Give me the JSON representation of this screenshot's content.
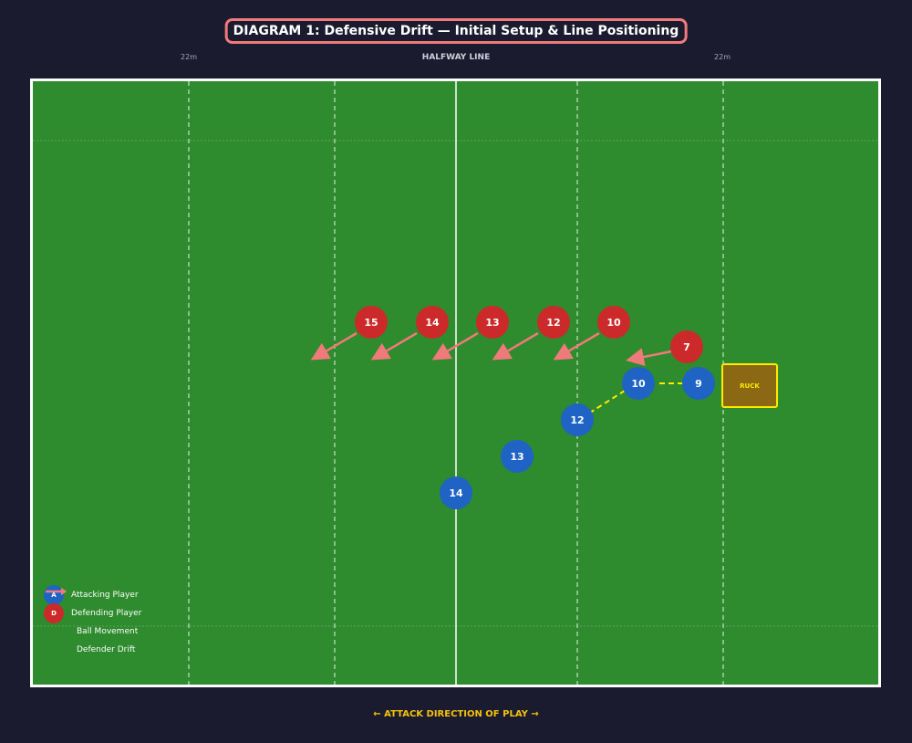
{
  "title": "DIAGRAM 1: Defensive Drift — Initial Setup & Line Positioning",
  "top_labels": {
    "left_22": "22m",
    "halfway": "HALFWAY LINE",
    "right_22": "22m"
  },
  "ruck_label": "RUCK",
  "attackers": [
    {
      "number": "9"
    },
    {
      "number": "10"
    },
    {
      "number": "12"
    },
    {
      "number": "13"
    },
    {
      "number": "14"
    }
  ],
  "defenders": [
    {
      "number": "15"
    },
    {
      "number": "14"
    },
    {
      "number": "13"
    },
    {
      "number": "12"
    },
    {
      "number": "10"
    },
    {
      "number": "7"
    }
  ],
  "legend": {
    "attacking_badge": "A",
    "attacking_label": "Attacking Player",
    "defending_badge": "D",
    "defending_label": "Defending Player",
    "ball_label": "Ball Movement",
    "drift_label": "Defender Drift"
  },
  "footer": "← ATTACK DIRECTION OF PLAY →",
  "colors": {
    "pitch": "#2e8b2e",
    "attacker": "#1f63c4",
    "defender": "#cc2a2a",
    "ruck": "#8b6914",
    "ball_path": "#ffeb00",
    "drift_arrow": "#f07a7a",
    "title_border": "#f07a7a"
  }
}
